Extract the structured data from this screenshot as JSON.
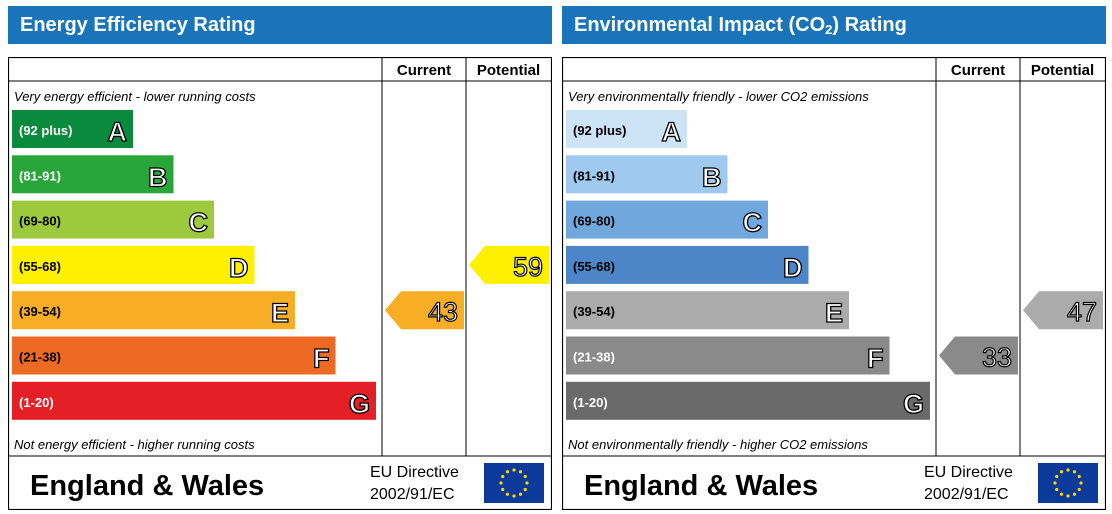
{
  "panels": [
    {
      "id": "energy",
      "title": "Energy Efficiency Rating",
      "title_sub": "",
      "title_after": "",
      "col_current": "Current",
      "col_potential": "Potential",
      "top_note": "Very energy efficient - lower running costs",
      "bottom_note": "Not energy efficient - higher running costs",
      "region": "England & Wales",
      "directive_line1": "EU Directive",
      "directive_line2": "2002/91/EC",
      "flag_icon": "eu-flag-icon",
      "colors": {
        "flag_bg": "#0c3a9a",
        "flag_star": "#ffd800"
      },
      "bands": [
        {
          "range": "(92 plus)",
          "letter": "A",
          "color": "#0a8a3c",
          "range_color": "#ffffff"
        },
        {
          "range": "(81-91)",
          "letter": "B",
          "color": "#2aa53a",
          "range_color": "#ffffff"
        },
        {
          "range": "(69-80)",
          "letter": "C",
          "color": "#9cca3c",
          "range_color": "#000000"
        },
        {
          "range": "(55-68)",
          "letter": "D",
          "color": "#ffef00",
          "range_color": "#000000"
        },
        {
          "range": "(39-54)",
          "letter": "E",
          "color": "#f7ae25",
          "range_color": "#000000"
        },
        {
          "range": "(21-38)",
          "letter": "F",
          "color": "#ed6a25",
          "range_color": "#000000"
        },
        {
          "range": "(1-20)",
          "letter": "G",
          "color": "#e41f26",
          "range_color": "#ffffff"
        }
      ],
      "current": {
        "value": "43",
        "color": "#f7ae25"
      },
      "potential": {
        "value": "59",
        "color": "#ffef00"
      }
    },
    {
      "id": "environmental",
      "title": "Environmental Impact (CO",
      "title_sub": "2",
      "title_after": ") Rating",
      "col_current": "Current",
      "col_potential": "Potential",
      "top_note": "Very environmentally friendly - lower CO2 emissions",
      "bottom_note": "Not environmentally friendly - higher CO2 emissions",
      "region": "England & Wales",
      "directive_line1": "EU Directive",
      "directive_line2": "2002/91/EC",
      "flag_icon": "eu-flag-icon",
      "colors": {
        "flag_bg": "#0c3a9a",
        "flag_star": "#ffd800"
      },
      "bands": [
        {
          "range": "(92 plus)",
          "letter": "A",
          "color": "#cce4f6",
          "range_color": "#000000"
        },
        {
          "range": "(81-91)",
          "letter": "B",
          "color": "#9fc9ef",
          "range_color": "#000000"
        },
        {
          "range": "(69-80)",
          "letter": "C",
          "color": "#70a7dc",
          "range_color": "#000000"
        },
        {
          "range": "(55-68)",
          "letter": "D",
          "color": "#4d86c8",
          "range_color": "#000000"
        },
        {
          "range": "(39-54)",
          "letter": "E",
          "color": "#ababab",
          "range_color": "#000000"
        },
        {
          "range": "(21-38)",
          "letter": "F",
          "color": "#8a8a8a",
          "range_color": "#ffffff"
        },
        {
          "range": "(1-20)",
          "letter": "G",
          "color": "#6a6a6a",
          "range_color": "#ffffff"
        }
      ],
      "current": {
        "value": "33",
        "color": "#8a8a8a"
      },
      "potential": {
        "value": "47",
        "color": "#ababab"
      }
    }
  ],
  "chart_data": [
    {
      "type": "table",
      "title": "Energy Efficiency Rating",
      "categories": [
        "A",
        "B",
        "C",
        "D",
        "E",
        "F",
        "G"
      ],
      "ranges": [
        "(92 plus)",
        "(81-91)",
        "(69-80)",
        "(55-68)",
        "(39-54)",
        "(21-38)",
        "(1-20)"
      ],
      "series": [
        {
          "name": "Current",
          "value": 43,
          "band": "E"
        },
        {
          "name": "Potential",
          "value": 59,
          "band": "D"
        }
      ]
    },
    {
      "type": "table",
      "title": "Environmental Impact (CO2) Rating",
      "categories": [
        "A",
        "B",
        "C",
        "D",
        "E",
        "F",
        "G"
      ],
      "ranges": [
        "(92 plus)",
        "(81-91)",
        "(69-80)",
        "(55-68)",
        "(39-54)",
        "(21-38)",
        "(1-20)"
      ],
      "series": [
        {
          "name": "Current",
          "value": 33,
          "band": "F"
        },
        {
          "name": "Potential",
          "value": 47,
          "band": "E"
        }
      ]
    }
  ]
}
